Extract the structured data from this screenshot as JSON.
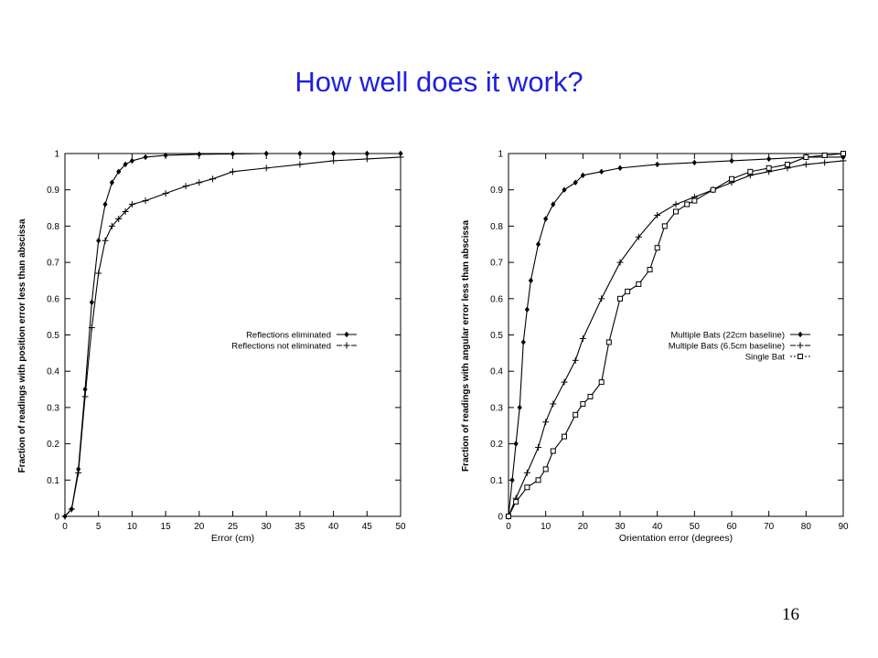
{
  "slide": {
    "title": "How well does it work?",
    "page_number": "16"
  },
  "chart_data": [
    {
      "type": "line",
      "title": "",
      "xlabel": "Error (cm)",
      "ylabel": "Fraction of readings with position error less than abscissa",
      "xlim": [
        0,
        50
      ],
      "ylim": [
        0,
        1
      ],
      "xticks": [
        0,
        5,
        10,
        15,
        20,
        25,
        30,
        35,
        40,
        45,
        50
      ],
      "yticks": [
        0,
        0.1,
        0.2,
        0.3,
        0.4,
        0.5,
        0.6,
        0.7,
        0.8,
        0.9,
        1
      ],
      "grid": false,
      "legend_position": "center-right",
      "series": [
        {
          "name": "Reflections eliminated",
          "marker": "diamond",
          "x": [
            0,
            1,
            2,
            3,
            4,
            5,
            6,
            7,
            8,
            9,
            10,
            12,
            15,
            20,
            25,
            30,
            35,
            40,
            45,
            50
          ],
          "y": [
            0,
            0.02,
            0.13,
            0.35,
            0.59,
            0.76,
            0.86,
            0.92,
            0.95,
            0.97,
            0.98,
            0.99,
            0.995,
            0.998,
            0.999,
            1.0,
            1.0,
            1.0,
            1.0,
            1.0
          ]
        },
        {
          "name": "Reflections not eliminated",
          "marker": "plus",
          "x": [
            0,
            1,
            2,
            3,
            4,
            5,
            6,
            7,
            8,
            9,
            10,
            12,
            15,
            18,
            20,
            22,
            25,
            30,
            35,
            40,
            45,
            50
          ],
          "y": [
            0,
            0.02,
            0.12,
            0.33,
            0.52,
            0.67,
            0.76,
            0.8,
            0.82,
            0.84,
            0.86,
            0.87,
            0.89,
            0.91,
            0.92,
            0.93,
            0.95,
            0.96,
            0.97,
            0.98,
            0.985,
            0.99
          ]
        }
      ]
    },
    {
      "type": "line",
      "title": "",
      "xlabel": "Orientation error (degrees)",
      "ylabel": "Fraction of readings with angular error less than abscissa",
      "xlim": [
        0,
        90
      ],
      "ylim": [
        0,
        1
      ],
      "xticks": [
        0,
        10,
        20,
        30,
        40,
        50,
        60,
        70,
        80,
        90
      ],
      "yticks": [
        0,
        0.1,
        0.2,
        0.3,
        0.4,
        0.5,
        0.6,
        0.7,
        0.8,
        0.9,
        1
      ],
      "grid": false,
      "legend_position": "center-right",
      "series": [
        {
          "name": "Multiple Bats (22cm baseline)",
          "marker": "diamond",
          "x": [
            0,
            1,
            2,
            3,
            4,
            5,
            6,
            8,
            10,
            12,
            15,
            18,
            20,
            25,
            30,
            40,
            50,
            60,
            70,
            80,
            90
          ],
          "y": [
            0,
            0.1,
            0.2,
            0.3,
            0.48,
            0.57,
            0.65,
            0.75,
            0.82,
            0.86,
            0.9,
            0.92,
            0.94,
            0.95,
            0.96,
            0.97,
            0.975,
            0.98,
            0.985,
            0.99,
            0.99
          ]
        },
        {
          "name": "Multiple Bats (6.5cm baseline)",
          "marker": "plus",
          "x": [
            0,
            2,
            5,
            8,
            10,
            12,
            15,
            18,
            20,
            25,
            30,
            35,
            40,
            45,
            50,
            55,
            60,
            65,
            70,
            75,
            80,
            85,
            90
          ],
          "y": [
            0,
            0.05,
            0.12,
            0.19,
            0.26,
            0.31,
            0.37,
            0.43,
            0.49,
            0.6,
            0.7,
            0.77,
            0.83,
            0.86,
            0.88,
            0.9,
            0.92,
            0.94,
            0.95,
            0.96,
            0.97,
            0.975,
            0.98
          ]
        },
        {
          "name": "Single Bat",
          "marker": "square",
          "x": [
            0,
            2,
            5,
            8,
            10,
            12,
            15,
            18,
            20,
            22,
            25,
            27,
            30,
            32,
            35,
            38,
            40,
            42,
            45,
            48,
            50,
            55,
            60,
            65,
            70,
            75,
            80,
            85,
            90
          ],
          "y": [
            0,
            0.04,
            0.08,
            0.1,
            0.13,
            0.18,
            0.22,
            0.28,
            0.31,
            0.33,
            0.37,
            0.48,
            0.6,
            0.62,
            0.64,
            0.68,
            0.74,
            0.8,
            0.84,
            0.86,
            0.87,
            0.9,
            0.93,
            0.95,
            0.96,
            0.97,
            0.99,
            0.995,
            1.0
          ]
        }
      ]
    }
  ]
}
